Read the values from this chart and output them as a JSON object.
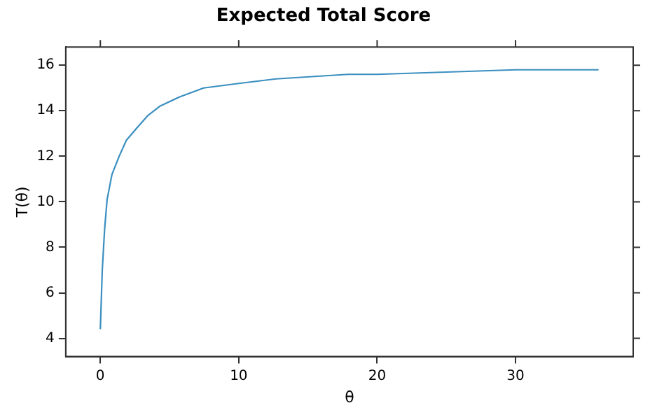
{
  "chart_data": {
    "type": "line",
    "title": "Expected Total Score",
    "xlabel": "θ",
    "ylabel": "T(θ)",
    "x": [
      0,
      0.14,
      0.31,
      0.49,
      0.84,
      1.36,
      1.88,
      2.58,
      3.45,
      4.3,
      5.7,
      7.46,
      10,
      12.7,
      17.9,
      20,
      25,
      30,
      36
    ],
    "series": [
      {
        "color": "#3a8fc0",
        "values": [
          4.4,
          7.0,
          8.8,
          10.1,
          11.2,
          12.0,
          12.7,
          13.2,
          13.8,
          14.2,
          14.6,
          15.0,
          15.2,
          15.4,
          15.6,
          15.6,
          15.7,
          15.8,
          15.8
        ]
      }
    ],
    "xlim": [
      -2.5,
      38.5
    ],
    "ylim": [
      3.2,
      16.8
    ],
    "xticks": [
      0,
      10,
      20,
      30
    ],
    "yticks": [
      4,
      6,
      8,
      10,
      12,
      14,
      16
    ],
    "grid": false,
    "legend": false,
    "marker": "none",
    "line_style": "solid"
  }
}
